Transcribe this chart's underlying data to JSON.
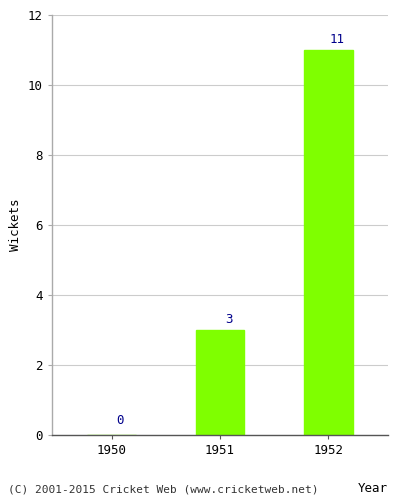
{
  "years": [
    "1950",
    "1951",
    "1952"
  ],
  "values": [
    0,
    3,
    11
  ],
  "bar_color": "#7FFF00",
  "bar_edge_color": "#7FFF00",
  "label_color": "#00008B",
  "ylabel": "Wickets",
  "xlabel": "Year",
  "ylim": [
    0,
    12
  ],
  "yticks": [
    0,
    2,
    4,
    6,
    8,
    10,
    12
  ],
  "grid_color": "#cccccc",
  "background_color": "#ffffff",
  "footer_text": "(C) 2001-2015 Cricket Web (www.cricketweb.net)",
  "label_fontsize": 9,
  "footer_fontsize": 8,
  "axis_label_fontsize": 9,
  "tick_fontsize": 9
}
